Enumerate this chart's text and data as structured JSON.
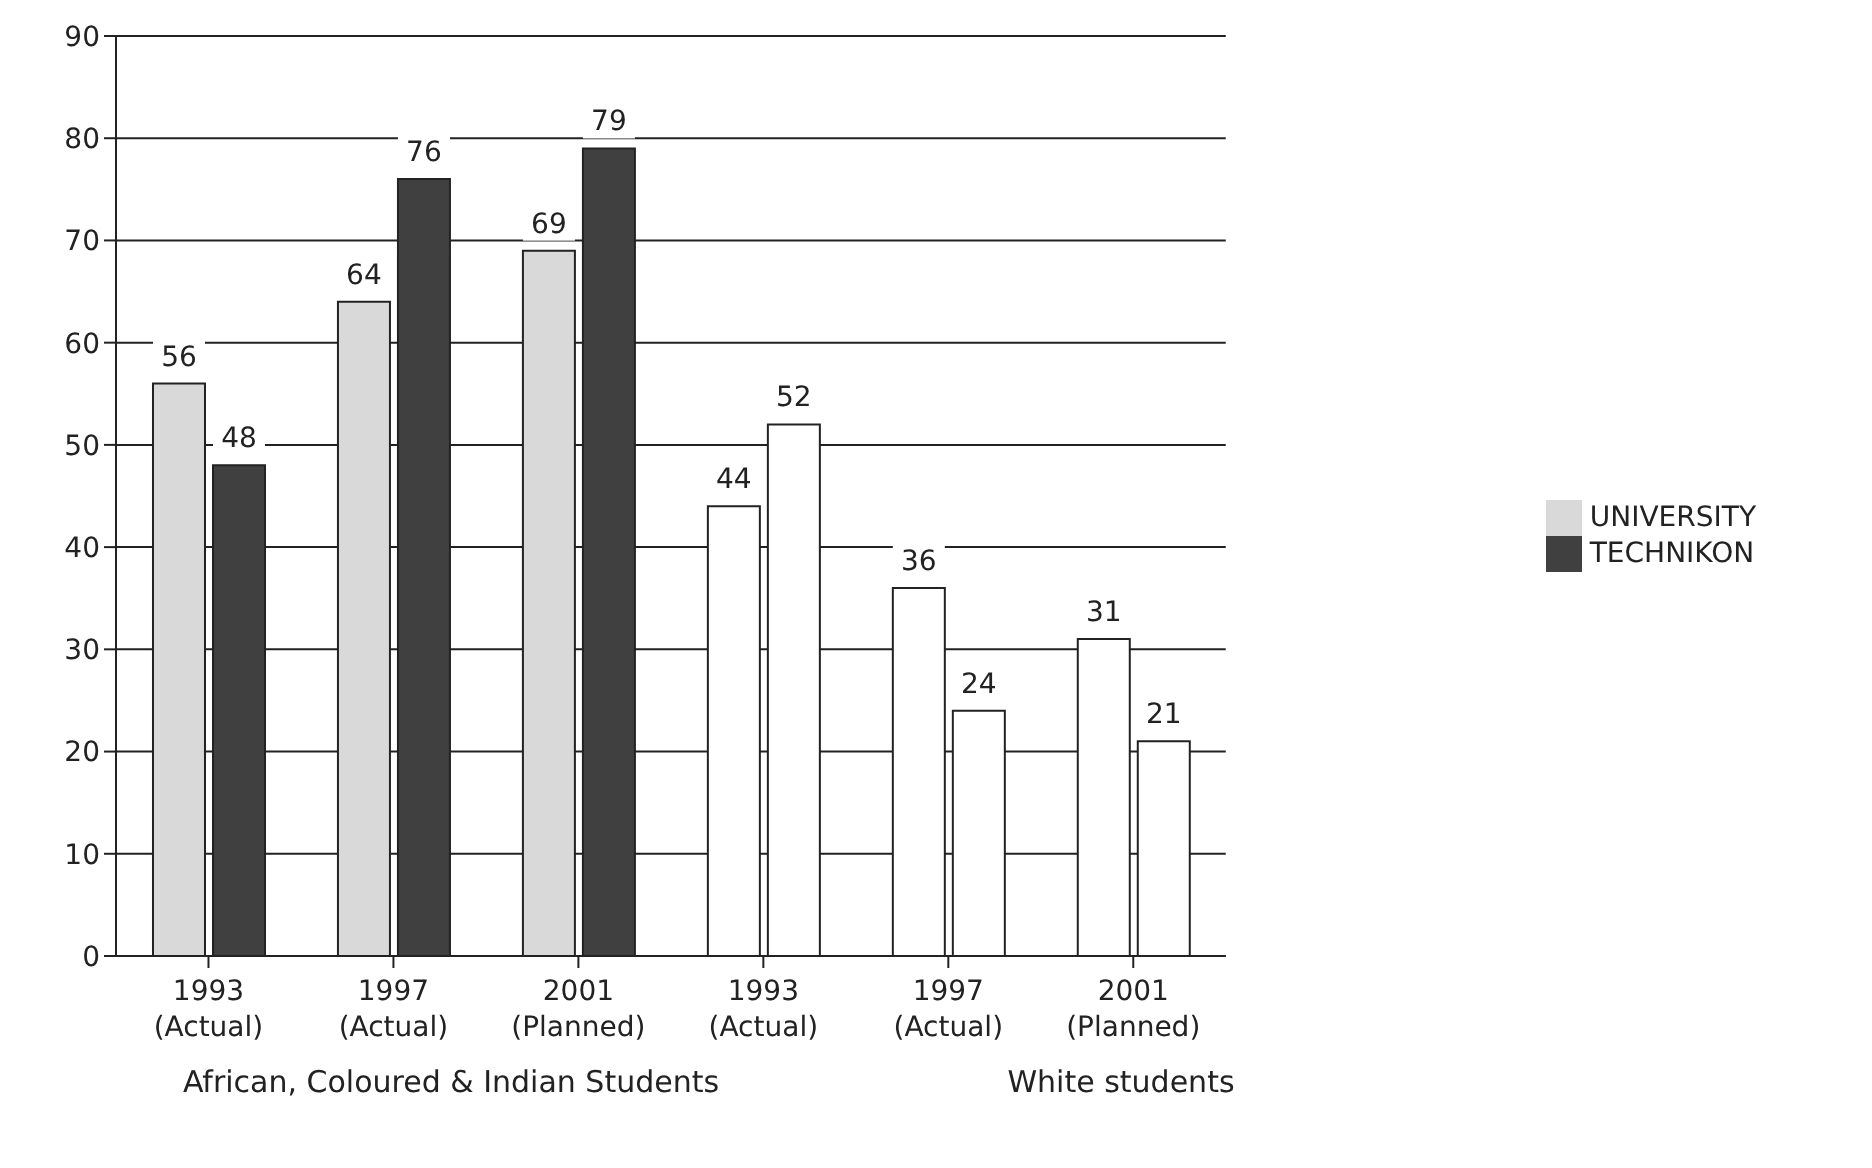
{
  "chart_data": {
    "type": "bar",
    "categories": [
      "1993 (Actual)",
      "1997 (Actual)",
      "2001 (Planned)",
      "1993 (Actual)",
      "1997 (Actual)",
      "2001 (Planned)"
    ],
    "series": [
      {
        "name": "UNIVERSITY",
        "color": "#d9d9d9",
        "colors": [
          "#d9d9d9",
          "#d9d9d9",
          "#d9d9d9",
          "#ffffff",
          "#ffffff",
          "#ffffff"
        ],
        "values": [
          56,
          64,
          69,
          44,
          36,
          31
        ]
      },
      {
        "name": "TECHNIKON",
        "color": "#404040",
        "colors": [
          "#404040",
          "#404040",
          "#404040",
          "#ffffff",
          "#ffffff",
          "#ffffff"
        ],
        "values": [
          48,
          76,
          79,
          52,
          24,
          21
        ]
      }
    ],
    "ylim": [
      0,
      90
    ],
    "yticks": [
      0,
      10,
      20,
      30,
      40,
      50,
      60,
      70,
      80,
      90
    ],
    "grid": "y",
    "legend": "right",
    "data_labels": true,
    "annotations": [
      "African, Coloured & Indian Students",
      "White students"
    ]
  }
}
